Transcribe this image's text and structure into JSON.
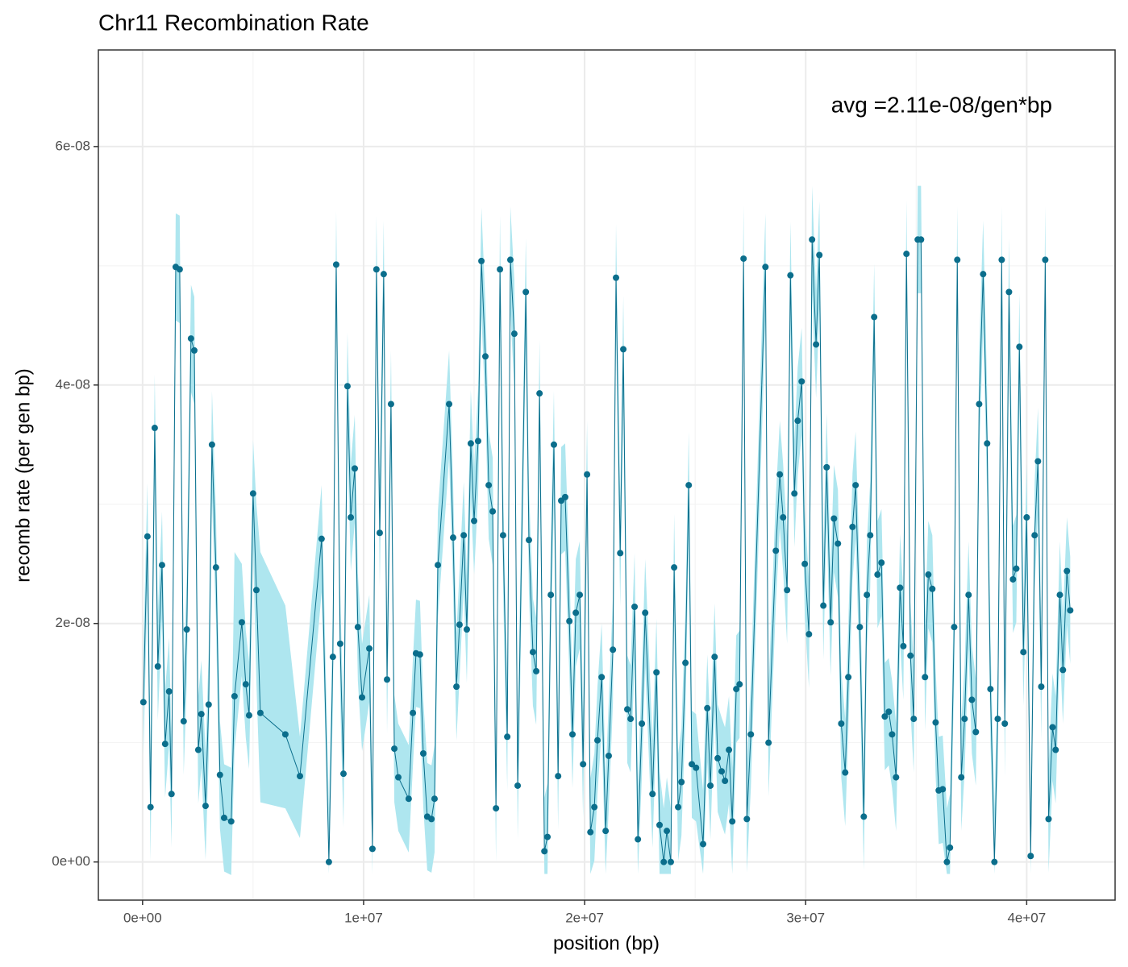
{
  "chart_data": {
    "type": "line",
    "title": "Chr11 Recombination Rate",
    "x_label": "position (bp)",
    "y_label": "recomb rate (per gen bp)",
    "annotation": "avg =2.11e-08/gen*bp",
    "color": "#0b6e8c",
    "ribbon_color": "#aee6ef",
    "grid": true,
    "xlim": [
      -2000000,
      44000000
    ],
    "ylim": [
      -3.2e-09,
      6.81e-08
    ],
    "xticks": [
      {
        "value": 0,
        "label": "0e+00"
      },
      {
        "value": 10000000,
        "label": "1e+07"
      },
      {
        "value": 20000000,
        "label": "2e+07"
      },
      {
        "value": 30000000,
        "label": "3e+07"
      },
      {
        "value": 40000000,
        "label": "4e+07"
      }
    ],
    "yticks": [
      {
        "value": 0,
        "label": "0e+00"
      },
      {
        "value": 2e-08,
        "label": "2e-08"
      },
      {
        "value": 4e-08,
        "label": "4e-08"
      },
      {
        "value": 6e-08,
        "label": "6e-08"
      }
    ],
    "minor_xticks": [
      5000000,
      15000000,
      25000000,
      35000000
    ],
    "minor_yticks": [
      1e-08,
      3e-08,
      5e-08
    ],
    "x": [
      36000,
      220000,
      360000,
      550000,
      690000,
      880000,
      1020000,
      1200000,
      1310000,
      1500000,
      1680000,
      1860000,
      2000000,
      2190000,
      2340000,
      2520000,
      2660000,
      2850000,
      2990000,
      3140000,
      3320000,
      3500000,
      3690000,
      4010000,
      4160000,
      4490000,
      4670000,
      4820000,
      5000000,
      5150000,
      5330000,
      6460000,
      7120000,
      8100000,
      8430000,
      8610000,
      8760000,
      8940000,
      9090000,
      9270000,
      9420000,
      9600000,
      9740000,
      9930000,
      10260000,
      10400000,
      10580000,
      10730000,
      10910000,
      11060000,
      11240000,
      11390000,
      11570000,
      12040000,
      12230000,
      12370000,
      12550000,
      12700000,
      12880000,
      13070000,
      13210000,
      13360000,
      13870000,
      14050000,
      14200000,
      14340000,
      14530000,
      14670000,
      14850000,
      15000000,
      15180000,
      15330000,
      15510000,
      15660000,
      15840000,
      15990000,
      16170000,
      16310000,
      16500000,
      16640000,
      16820000,
      16970000,
      17340000,
      17480000,
      17660000,
      17810000,
      17960000,
      18180000,
      18320000,
      18470000,
      18610000,
      18800000,
      18940000,
      19120000,
      19310000,
      19450000,
      19600000,
      19780000,
      19930000,
      20110000,
      20260000,
      20440000,
      20580000,
      20770000,
      20950000,
      21090000,
      21280000,
      21420000,
      21610000,
      21750000,
      21930000,
      22080000,
      22260000,
      22410000,
      22590000,
      22740000,
      23070000,
      23250000,
      23390000,
      23580000,
      23720000,
      23900000,
      24050000,
      24230000,
      24380000,
      24560000,
      24710000,
      24850000,
      25040000,
      25360000,
      25550000,
      25690000,
      25880000,
      26020000,
      26200000,
      26350000,
      26530000,
      26680000,
      26860000,
      27010000,
      27190000,
      27340000,
      27520000,
      28180000,
      28320000,
      28650000,
      28830000,
      28980000,
      29160000,
      29310000,
      29490000,
      29640000,
      29820000,
      29960000,
      30150000,
      30290000,
      30470000,
      30620000,
      30800000,
      30950000,
      31130000,
      31280000,
      31460000,
      31610000,
      31790000,
      31930000,
      32120000,
      32260000,
      32450000,
      32630000,
      32770000,
      32920000,
      33100000,
      33250000,
      33430000,
      33580000,
      33760000,
      33910000,
      34090000,
      34270000,
      34420000,
      34560000,
      34740000,
      34890000,
      35070000,
      35220000,
      35400000,
      35550000,
      35730000,
      35880000,
      36020000,
      36200000,
      36390000,
      36530000,
      36720000,
      36860000,
      37040000,
      37190000,
      37370000,
      37520000,
      37700000,
      37850000,
      38030000,
      38210000,
      38360000,
      38540000,
      38690000,
      38870000,
      39010000,
      39200000,
      39380000,
      39530000,
      39670000,
      39850000,
      40000000,
      40180000,
      40360000,
      40510000,
      40660000,
      40840000,
      40990000,
      41170000,
      41310000,
      41500000,
      41640000,
      41820000,
      41970000
    ],
    "values": [
      1.34e-08,
      2.73e-08,
      4.6e-09,
      3.64e-08,
      1.64e-08,
      2.49e-08,
      9.9e-09,
      1.43e-08,
      5.7e-09,
      4.99e-08,
      4.97e-08,
      1.18e-08,
      1.95e-08,
      4.39e-08,
      4.29e-08,
      9.4e-09,
      1.24e-08,
      4.7e-09,
      1.32e-08,
      3.5e-08,
      2.47e-08,
      7.3e-09,
      3.7e-09,
      3.4e-09,
      1.39e-08,
      2.01e-08,
      1.49e-08,
      1.23e-08,
      3.09e-08,
      2.28e-08,
      1.25e-08,
      1.07e-08,
      7.2e-09,
      2.71e-08,
      0,
      1.72e-08,
      5.01e-08,
      1.83e-08,
      7.4e-09,
      3.99e-08,
      2.89e-08,
      3.3e-08,
      1.97e-08,
      1.38e-08,
      1.79e-08,
      1.1e-09,
      4.97e-08,
      2.76e-08,
      4.93e-08,
      1.53e-08,
      3.84e-08,
      9.5e-09,
      7.1e-09,
      5.3e-09,
      1.25e-08,
      1.75e-08,
      1.74e-08,
      9.1e-09,
      3.8e-09,
      3.6e-09,
      5.3e-09,
      2.49e-08,
      3.84e-08,
      2.72e-08,
      1.47e-08,
      1.99e-08,
      2.74e-08,
      1.95e-08,
      3.51e-08,
      2.86e-08,
      3.53e-08,
      5.04e-08,
      4.24e-08,
      3.16e-08,
      2.94e-08,
      4.5e-09,
      4.97e-08,
      2.74e-08,
      1.05e-08,
      5.05e-08,
      4.43e-08,
      6.4e-09,
      4.78e-08,
      2.7e-08,
      1.76e-08,
      1.6e-08,
      3.93e-08,
      9e-10,
      2.1e-09,
      2.24e-08,
      3.5e-08,
      7.2e-09,
      3.03e-08,
      3.06e-08,
      2.02e-08,
      1.07e-08,
      2.09e-08,
      2.24e-08,
      8.2e-09,
      3.25e-08,
      2.5e-09,
      4.6e-09,
      1.02e-08,
      1.55e-08,
      2.6e-09,
      8.9e-09,
      1.78e-08,
      4.9e-08,
      2.59e-08,
      4.3e-08,
      1.28e-08,
      1.2e-08,
      2.14e-08,
      1.9e-09,
      1.16e-08,
      2.09e-08,
      5.7e-09,
      1.59e-08,
      3.1e-09,
      0,
      2.6e-09,
      0,
      2.47e-08,
      4.6e-09,
      6.7e-09,
      1.67e-08,
      3.16e-08,
      8.2e-09,
      7.9e-09,
      1.5e-09,
      1.29e-08,
      6.4e-09,
      1.72e-08,
      8.7e-09,
      7.6e-09,
      6.8e-09,
      9.4e-09,
      3.4e-09,
      1.45e-08,
      1.49e-08,
      5.06e-08,
      3.6e-09,
      1.07e-08,
      4.99e-08,
      1e-08,
      2.61e-08,
      3.25e-08,
      2.89e-08,
      2.28e-08,
      4.92e-08,
      3.09e-08,
      3.7e-08,
      4.03e-08,
      2.5e-08,
      1.91e-08,
      5.22e-08,
      4.34e-08,
      5.09e-08,
      2.15e-08,
      3.31e-08,
      2.01e-08,
      2.88e-08,
      2.67e-08,
      1.16e-08,
      7.5e-09,
      1.55e-08,
      2.81e-08,
      3.16e-08,
      1.97e-08,
      3.8e-09,
      2.24e-08,
      2.74e-08,
      4.57e-08,
      2.41e-08,
      2.51e-08,
      1.22e-08,
      1.26e-08,
      1.07e-08,
      7.1e-09,
      2.3e-08,
      1.81e-08,
      5.1e-08,
      1.73e-08,
      1.2e-08,
      5.22e-08,
      5.22e-08,
      1.55e-08,
      2.41e-08,
      2.29e-08,
      1.17e-08,
      6e-09,
      6.1e-09,
      0,
      1.2e-09,
      1.97e-08,
      5.05e-08,
      7.1e-09,
      1.2e-08,
      2.24e-08,
      1.36e-08,
      1.09e-08,
      3.84e-08,
      4.93e-08,
      3.51e-08,
      1.45e-08,
      0,
      1.2e-08,
      5.05e-08,
      1.16e-08,
      4.78e-08,
      2.37e-08,
      2.46e-08,
      4.32e-08,
      1.76e-08,
      2.89e-08,
      5e-10,
      2.74e-08,
      3.36e-08,
      1.47e-08,
      5.05e-08,
      3.6e-09,
      1.13e-08,
      9.4e-09,
      2.24e-08,
      1.61e-08,
      2.44e-08,
      2.11e-08
    ],
    "lower": [
      8.9e-09,
      2.28e-08,
      1e-10,
      3.19e-08,
      1.19e-08,
      2.04e-08,
      5.4e-09,
      9.8e-09,
      1.2e-09,
      4.54e-08,
      4.52e-08,
      7.3e-09,
      1.5e-08,
      3.94e-08,
      3.84e-08,
      4.9e-09,
      7.9e-09,
      2e-10,
      8.7e-09,
      3.05e-08,
      2.02e-08,
      2.8e-09,
      -8e-10,
      -1.1e-09,
      9.4e-09,
      1.56e-08,
      1.04e-08,
      7.8e-09,
      2.64e-08,
      1.5e-08,
      5e-09,
      4.5e-09,
      2e-09,
      2.26e-08,
      -1e-09,
      1.27e-08,
      4.56e-08,
      1.38e-08,
      2.9e-09,
      3.54e-08,
      2.44e-08,
      2.85e-08,
      1.52e-08,
      9.3e-09,
      1.34e-08,
      -1e-09,
      4.52e-08,
      2.31e-08,
      4.48e-08,
      1.08e-08,
      3.39e-08,
      5e-09,
      2.6e-09,
      8e-10,
      8e-09,
      1.3e-08,
      1.29e-08,
      4.6e-09,
      -7e-10,
      -9e-10,
      8e-10,
      2.04e-08,
      3.39e-08,
      2.27e-08,
      1.02e-08,
      1.54e-08,
      2.29e-08,
      1.5e-08,
      3.06e-08,
      2.41e-08,
      3.08e-08,
      4.59e-08,
      3.79e-08,
      2.71e-08,
      2.49e-08,
      0,
      4.52e-08,
      2.29e-08,
      6e-09,
      4.6e-08,
      3.98e-08,
      1.9e-09,
      4.33e-08,
      2.25e-08,
      1.31e-08,
      1.15e-08,
      3.48e-08,
      -1e-09,
      -1e-09,
      1.79e-08,
      3.05e-08,
      2.7e-09,
      2.58e-08,
      2.61e-08,
      1.57e-08,
      6.2e-09,
      1.64e-08,
      1.79e-08,
      3.7e-09,
      2.8e-08,
      -1e-09,
      1e-10,
      5.7e-09,
      1.1e-08,
      -1e-09,
      4.4e-09,
      1.33e-08,
      4.45e-08,
      2.14e-08,
      3.85e-08,
      8.3e-09,
      7.5e-09,
      1.69e-08,
      -1e-09,
      7.1e-09,
      1.64e-08,
      1.2e-09,
      1.14e-08,
      -1e-09,
      -1e-09,
      -1e-09,
      -1e-09,
      2.02e-08,
      1e-10,
      2.2e-09,
      1.22e-08,
      2.71e-08,
      3.7e-09,
      3.4e-09,
      -1e-09,
      8.4e-09,
      1.9e-09,
      1.27e-08,
      4.2e-09,
      3.1e-09,
      2.3e-09,
      4.9e-09,
      -1e-09,
      1e-08,
      1.04e-08,
      4.61e-08,
      -9e-10,
      6.2e-09,
      4.54e-08,
      5.5e-09,
      2.16e-08,
      2.8e-08,
      2.44e-08,
      1.83e-08,
      4.47e-08,
      2.64e-08,
      3.25e-08,
      3.58e-08,
      2.05e-08,
      1.46e-08,
      4.77e-08,
      3.89e-08,
      4.64e-08,
      1.7e-08,
      2.86e-08,
      1.56e-08,
      2.43e-08,
      2.22e-08,
      7.1e-09,
      3e-09,
      1.1e-08,
      2.36e-08,
      2.71e-08,
      1.52e-08,
      -7e-10,
      1.79e-08,
      2.29e-08,
      4.12e-08,
      1.96e-08,
      2.06e-08,
      7.7e-09,
      8.1e-09,
      6.2e-09,
      2.6e-09,
      1.85e-08,
      1.36e-08,
      4.65e-08,
      1.28e-08,
      7.5e-09,
      4.77e-08,
      4.77e-08,
      1.1e-08,
      1.96e-08,
      1.84e-08,
      7.2e-09,
      1.5e-09,
      1.6e-09,
      -1e-09,
      -1e-09,
      1.52e-08,
      4.6e-08,
      2.6e-09,
      7.5e-09,
      1.79e-08,
      9.1e-09,
      6.4e-09,
      3.39e-08,
      4.48e-08,
      3.06e-08,
      1e-08,
      -1e-09,
      7.5e-09,
      4.6e-08,
      7.1e-09,
      4.33e-08,
      1.92e-08,
      2.01e-08,
      3.87e-08,
      1.31e-08,
      2.44e-08,
      -1e-09,
      2.29e-08,
      2.91e-08,
      1.02e-08,
      4.6e-08,
      -9e-10,
      6.8e-09,
      4.9e-09,
      1.79e-08,
      1.16e-08,
      1.99e-08,
      1.66e-08
    ],
    "upper": [
      1.79e-08,
      3.18e-08,
      9.1e-09,
      4.09e-08,
      2.09e-08,
      2.94e-08,
      1.44e-08,
      1.88e-08,
      1.02e-08,
      5.44e-08,
      5.42e-08,
      1.63e-08,
      2.4e-08,
      4.84e-08,
      4.74e-08,
      1.39e-08,
      1.69e-08,
      9.2e-09,
      1.77e-08,
      3.95e-08,
      2.92e-08,
      1.18e-08,
      8.2e-09,
      7.9e-09,
      2.6e-08,
      2.5e-08,
      1.94e-08,
      1.68e-08,
      3.54e-08,
      3e-08,
      2.6e-08,
      2.15e-08,
      1.05e-08,
      3.16e-08,
      4.5e-09,
      2.17e-08,
      5.46e-08,
      2.28e-08,
      1.19e-08,
      4.44e-08,
      3.34e-08,
      3.75e-08,
      2.42e-08,
      1.83e-08,
      2.24e-08,
      5.6e-09,
      5.42e-08,
      3.21e-08,
      5.38e-08,
      1.98e-08,
      4.29e-08,
      1.4e-08,
      1.16e-08,
      9.8e-09,
      1.7e-08,
      2.2e-08,
      2.19e-08,
      1.36e-08,
      8.3e-09,
      8.1e-09,
      9.8e-09,
      2.94e-08,
      4.29e-08,
      3.17e-08,
      1.92e-08,
      2.44e-08,
      3.19e-08,
      2.4e-08,
      3.96e-08,
      3.31e-08,
      3.98e-08,
      5.49e-08,
      4.69e-08,
      3.61e-08,
      3.39e-08,
      9e-09,
      5.42e-08,
      3.19e-08,
      1.5e-08,
      5.5e-08,
      4.88e-08,
      1.09e-08,
      5.23e-08,
      3.15e-08,
      2.21e-08,
      2.05e-08,
      4.38e-08,
      5.4e-09,
      6.6e-09,
      2.69e-08,
      3.95e-08,
      1.17e-08,
      3.48e-08,
      3.51e-08,
      2.47e-08,
      1.52e-08,
      2.54e-08,
      2.69e-08,
      1.27e-08,
      3.7e-08,
      7e-09,
      9.1e-09,
      1.47e-08,
      2e-08,
      7.1e-09,
      1.34e-08,
      2.23e-08,
      5.35e-08,
      3.04e-08,
      4.75e-08,
      1.73e-08,
      1.65e-08,
      2.59e-08,
      6.4e-09,
      1.61e-08,
      2.54e-08,
      1.02e-08,
      2.04e-08,
      7.6e-09,
      4.5e-09,
      7.1e-09,
      4.5e-09,
      2.92e-08,
      9.1e-09,
      1.12e-08,
      2.12e-08,
      3.61e-08,
      1.27e-08,
      1.24e-08,
      6e-09,
      1.74e-08,
      1.09e-08,
      2.17e-08,
      1.32e-08,
      1.21e-08,
      1.13e-08,
      1.39e-08,
      7.9e-09,
      1.9e-08,
      1.94e-08,
      5.51e-08,
      8.1e-09,
      1.52e-08,
      5.44e-08,
      1.45e-08,
      3.06e-08,
      3.7e-08,
      3.34e-08,
      2.73e-08,
      5.37e-08,
      3.54e-08,
      4.15e-08,
      4.48e-08,
      2.95e-08,
      2.36e-08,
      5.67e-08,
      4.79e-08,
      5.54e-08,
      2.6e-08,
      3.76e-08,
      2.46e-08,
      3.33e-08,
      3.12e-08,
      1.61e-08,
      1.2e-08,
      2e-08,
      3.26e-08,
      3.61e-08,
      2.42e-08,
      8.3e-09,
      2.69e-08,
      3.19e-08,
      5.02e-08,
      2.86e-08,
      2.96e-08,
      1.67e-08,
      1.71e-08,
      1.52e-08,
      1.16e-08,
      2.75e-08,
      2.26e-08,
      5.55e-08,
      2.18e-08,
      1.65e-08,
      5.67e-08,
      5.67e-08,
      2e-08,
      2.86e-08,
      2.74e-08,
      1.62e-08,
      1.05e-08,
      1.06e-08,
      4.5e-09,
      5.7e-09,
      2.42e-08,
      5.5e-08,
      1.16e-08,
      1.65e-08,
      2.69e-08,
      1.81e-08,
      1.54e-08,
      4.29e-08,
      5.38e-08,
      3.96e-08,
      1.9e-08,
      4.5e-09,
      1.65e-08,
      5.5e-08,
      1.61e-08,
      5.23e-08,
      2.82e-08,
      2.91e-08,
      4.77e-08,
      2.21e-08,
      3.34e-08,
      5e-09,
      3.19e-08,
      3.81e-08,
      1.92e-08,
      5.5e-08,
      8.1e-09,
      1.58e-08,
      1.39e-08,
      2.69e-08,
      2.06e-08,
      2.89e-08,
      2.56e-08
    ]
  }
}
